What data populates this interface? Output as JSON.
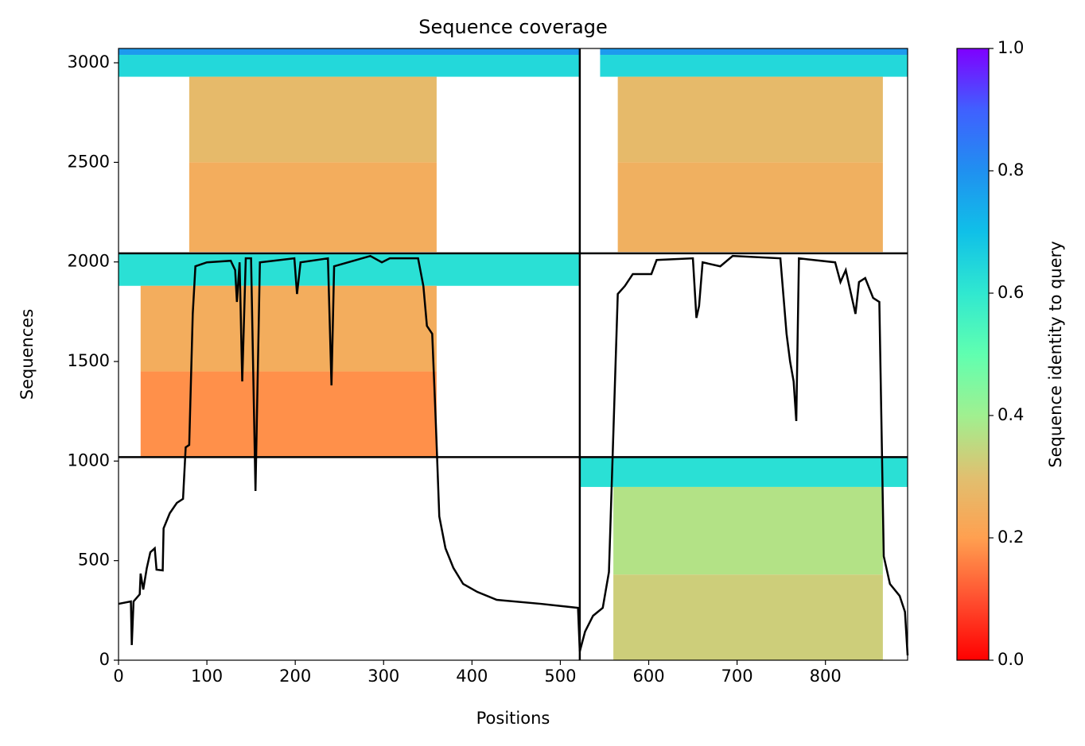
{
  "chart_data": {
    "type": "line",
    "title": "Sequence coverage",
    "x_label": "Positions",
    "y_label": "Sequences",
    "xlim": [
      0,
      893
    ],
    "ylim": [
      0,
      3072
    ],
    "xticks": [
      0,
      100,
      200,
      300,
      400,
      500,
      600,
      700,
      800
    ],
    "yticks": [
      0,
      500,
      1000,
      1500,
      2000,
      2500,
      3000
    ],
    "series": [
      {
        "name": "coverage",
        "color": "#000000",
        "x": [
          0,
          14,
          15,
          17,
          24,
          25,
          28,
          32,
          36,
          41,
          43,
          50,
          51,
          58,
          66,
          73,
          76,
          80,
          84,
          87,
          100,
          127,
          132,
          134,
          137,
          140,
          144,
          150,
          155,
          160,
          199,
          202,
          206,
          237,
          241,
          244,
          285,
          298,
          307,
          339,
          345,
          349,
          355,
          359,
          363,
          370,
          379,
          390,
          406,
          428,
          478,
          520,
          522,
          528,
          537,
          548,
          555,
          559,
          565,
          573,
          582,
          603,
          609,
          650,
          654,
          657,
          661,
          681,
          695,
          749,
          756,
          760,
          764,
          767,
          770,
          811,
          817,
          823,
          834,
          838,
          845,
          854,
          861,
          866,
          873,
          884,
          890,
          893
        ],
        "values": [
          283,
          295,
          76,
          295,
          331,
          435,
          355,
          463,
          542,
          562,
          455,
          451,
          662,
          738,
          790,
          810,
          1069,
          1081,
          1739,
          1978,
          1998,
          2006,
          1959,
          1799,
          1998,
          1400,
          2018,
          2018,
          850,
          1998,
          2018,
          1839,
          1998,
          2018,
          1380,
          1978,
          2030,
          1998,
          2018,
          2018,
          1879,
          1679,
          1639,
          1201,
          722,
          562,
          463,
          383,
          343,
          303,
          283,
          263,
          44,
          144,
          223,
          263,
          443,
          1001,
          1839,
          1879,
          1939,
          1939,
          2010,
          2018,
          1719,
          1779,
          1998,
          1978,
          2030,
          2018,
          1639,
          1500,
          1400,
          1201,
          2018,
          1998,
          1899,
          1959,
          1739,
          1899,
          1919,
          1819,
          1799,
          522,
          383,
          323,
          243,
          24
        ]
      }
    ],
    "heatmap_blocks": [
      {
        "x": [
          0,
          522
        ],
        "y": [
          3040,
          3072
        ],
        "identity": 0.78
      },
      {
        "x": [
          0,
          522
        ],
        "y": [
          2930,
          3040
        ],
        "identity": 0.64
      },
      {
        "x": [
          80,
          360
        ],
        "y": [
          2500,
          2930
        ],
        "identity": 0.28
      },
      {
        "x": [
          80,
          360
        ],
        "y": [
          2050,
          2500
        ],
        "identity": 0.24
      },
      {
        "x": [
          545,
          893
        ],
        "y": [
          3040,
          3072
        ],
        "identity": 0.78
      },
      {
        "x": [
          545,
          893
        ],
        "y": [
          2930,
          3040
        ],
        "identity": 0.64
      },
      {
        "x": [
          565,
          865
        ],
        "y": [
          2500,
          2930
        ],
        "identity": 0.28
      },
      {
        "x": [
          565,
          865
        ],
        "y": [
          2050,
          2500
        ],
        "identity": 0.25
      },
      {
        "x": [
          0,
          522
        ],
        "y": [
          1880,
          2043
        ],
        "identity": 0.62
      },
      {
        "x": [
          25,
          360
        ],
        "y": [
          1450,
          1880
        ],
        "identity": 0.24
      },
      {
        "x": [
          25,
          360
        ],
        "y": [
          1020,
          1450
        ],
        "identity": 0.18
      },
      {
        "x": [
          522,
          893
        ],
        "y": [
          870,
          1020
        ],
        "identity": 0.62
      },
      {
        "x": [
          560,
          865
        ],
        "y": [
          430,
          870
        ],
        "identity": 0.37
      },
      {
        "x": [
          560,
          865
        ],
        "y": [
          0,
          430
        ],
        "identity": 0.33
      }
    ],
    "boundaries": {
      "x": [
        522
      ],
      "y": [
        1020,
        2043
      ]
    },
    "colorbar": {
      "label": "Sequence identity to query",
      "lim": [
        0,
        1
      ],
      "ticks": [
        {
          "value": 0,
          "label": "0.0"
        },
        {
          "value": 0.2,
          "label": "0.2"
        },
        {
          "value": 0.4,
          "label": "0.4"
        },
        {
          "value": 0.6,
          "label": "0.6"
        },
        {
          "value": 0.8,
          "label": "0.8"
        },
        {
          "value": 1,
          "label": "1.0"
        }
      ],
      "colormap": [
        "#ff0000",
        "#ff5030",
        "#ffa050",
        "#e0c070",
        "#a0f090",
        "#60ffb0",
        "#30e8d0",
        "#10c0e8",
        "#2090f0",
        "#4060ff",
        "#7f00ff"
      ]
    }
  }
}
